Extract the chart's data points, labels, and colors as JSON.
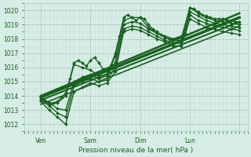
{
  "xlabel": "Pression niveau de la mer( hPa )",
  "ylim": [
    1011.5,
    1020.5
  ],
  "xlim": [
    0,
    108
  ],
  "yticks": [
    1012,
    1013,
    1014,
    1015,
    1016,
    1017,
    1018,
    1019,
    1020
  ],
  "xtick_positions": [
    8,
    32,
    56,
    80,
    104
  ],
  "xtick_labels": [
    "Ven",
    "Sam",
    "Dim",
    "Lun",
    ""
  ],
  "bg_color": "#d6ede6",
  "grid_major_color": "#b0ccbf",
  "grid_minor_color": "#c8e0d8",
  "line_color": "#1a6020",
  "lines": [
    {
      "x": [
        8,
        10,
        12,
        14,
        16,
        18,
        20,
        22,
        24,
        26,
        28,
        30,
        32,
        34,
        36,
        38,
        40,
        42,
        44,
        46,
        48,
        50,
        52,
        54,
        56,
        58,
        60,
        62,
        64,
        66,
        68,
        70,
        72,
        74,
        76,
        78,
        80,
        82,
        84,
        86,
        88,
        90,
        92,
        94,
        96,
        98,
        100,
        102,
        104
      ],
      "y": [
        1013.9,
        1013.7,
        1013.5,
        1013.5,
        1013.6,
        1013.9,
        1014.2,
        1015.2,
        1016.3,
        1016.5,
        1016.3,
        1016.1,
        1016.5,
        1016.7,
        1016.3,
        1015.9,
        1015.7,
        1016.2,
        1017.0,
        1018.2,
        1019.5,
        1019.7,
        1019.5,
        1019.3,
        1019.5,
        1019.4,
        1019.0,
        1018.7,
        1018.5,
        1018.3,
        1018.1,
        1018.0,
        1018.0,
        1018.1,
        1018.2,
        1018.3,
        1020.2,
        1020.1,
        1019.9,
        1019.7,
        1019.6,
        1019.5,
        1019.4,
        1019.4,
        1019.4,
        1019.3,
        1019.3,
        1019.2,
        1019.2
      ],
      "marker": "D",
      "markersize": 2,
      "linewidth": 1.0
    },
    {
      "x": [
        8,
        12,
        16,
        20,
        24,
        28,
        32,
        36,
        40,
        44,
        48,
        52,
        56,
        60,
        64,
        68,
        72,
        76,
        80,
        84,
        88,
        92,
        96,
        100,
        104
      ],
      "y": [
        1013.8,
        1013.4,
        1013.5,
        1014.0,
        1016.2,
        1016.0,
        1015.8,
        1015.4,
        1015.5,
        1016.8,
        1019.3,
        1019.5,
        1019.5,
        1018.8,
        1018.4,
        1018.2,
        1018.0,
        1018.1,
        1020.2,
        1019.8,
        1019.5,
        1019.3,
        1019.2,
        1019.1,
        1019.0
      ],
      "marker": "D",
      "markersize": 2,
      "linewidth": 1.0
    },
    {
      "x": [
        8,
        12,
        16,
        20,
        24,
        28,
        32,
        36,
        40,
        44,
        48,
        52,
        56,
        60,
        64,
        68,
        72,
        76,
        80,
        84,
        88,
        92,
        96,
        100,
        104
      ],
      "y": [
        1013.9,
        1013.5,
        1013.1,
        1013.0,
        1015.0,
        1015.3,
        1015.5,
        1015.2,
        1015.4,
        1016.4,
        1019.0,
        1019.2,
        1019.1,
        1018.7,
        1018.4,
        1018.1,
        1017.9,
        1017.9,
        1019.9,
        1019.6,
        1019.3,
        1019.1,
        1019.0,
        1018.9,
        1018.8
      ],
      "marker": "D",
      "markersize": 2,
      "linewidth": 1.0
    },
    {
      "x": [
        8,
        12,
        16,
        20,
        24,
        28,
        32,
        36,
        40,
        44,
        48,
        52,
        56,
        60,
        64,
        68,
        72,
        76,
        80,
        84,
        88,
        92,
        96,
        100,
        104
      ],
      "y": [
        1013.7,
        1013.3,
        1012.8,
        1012.5,
        1014.7,
        1015.0,
        1015.2,
        1015.0,
        1015.1,
        1016.0,
        1018.7,
        1018.9,
        1018.8,
        1018.5,
        1018.2,
        1017.9,
        1017.7,
        1017.7,
        1019.7,
        1019.3,
        1019.1,
        1018.9,
        1018.8,
        1018.7,
        1018.6
      ],
      "marker": "D",
      "markersize": 2,
      "linewidth": 1.0
    },
    {
      "x": [
        8,
        12,
        16,
        20,
        24,
        28,
        32,
        36,
        40,
        44,
        48,
        52,
        56,
        60,
        64,
        68,
        72,
        76,
        80,
        84,
        88,
        92,
        96,
        100,
        104
      ],
      "y": [
        1013.6,
        1013.0,
        1012.5,
        1012.0,
        1014.3,
        1014.6,
        1014.9,
        1014.7,
        1014.9,
        1015.7,
        1018.5,
        1018.7,
        1018.6,
        1018.3,
        1018.0,
        1017.8,
        1017.5,
        1017.5,
        1019.4,
        1019.1,
        1018.8,
        1018.7,
        1018.5,
        1018.4,
        1018.3
      ],
      "marker": "D",
      "markersize": 2,
      "linewidth": 1.0
    },
    {
      "x": [
        8,
        104
      ],
      "y": [
        1013.9,
        1019.5
      ],
      "marker": null,
      "markersize": 0,
      "linewidth": 2.5
    },
    {
      "x": [
        8,
        104
      ],
      "y": [
        1014.0,
        1019.8
      ],
      "marker": null,
      "markersize": 0,
      "linewidth": 1.8
    },
    {
      "x": [
        8,
        104
      ],
      "y": [
        1013.7,
        1019.2
      ],
      "marker": null,
      "markersize": 0,
      "linewidth": 1.5
    },
    {
      "x": [
        8,
        104
      ],
      "y": [
        1013.4,
        1018.9
      ],
      "marker": null,
      "markersize": 0,
      "linewidth": 1.2
    }
  ]
}
